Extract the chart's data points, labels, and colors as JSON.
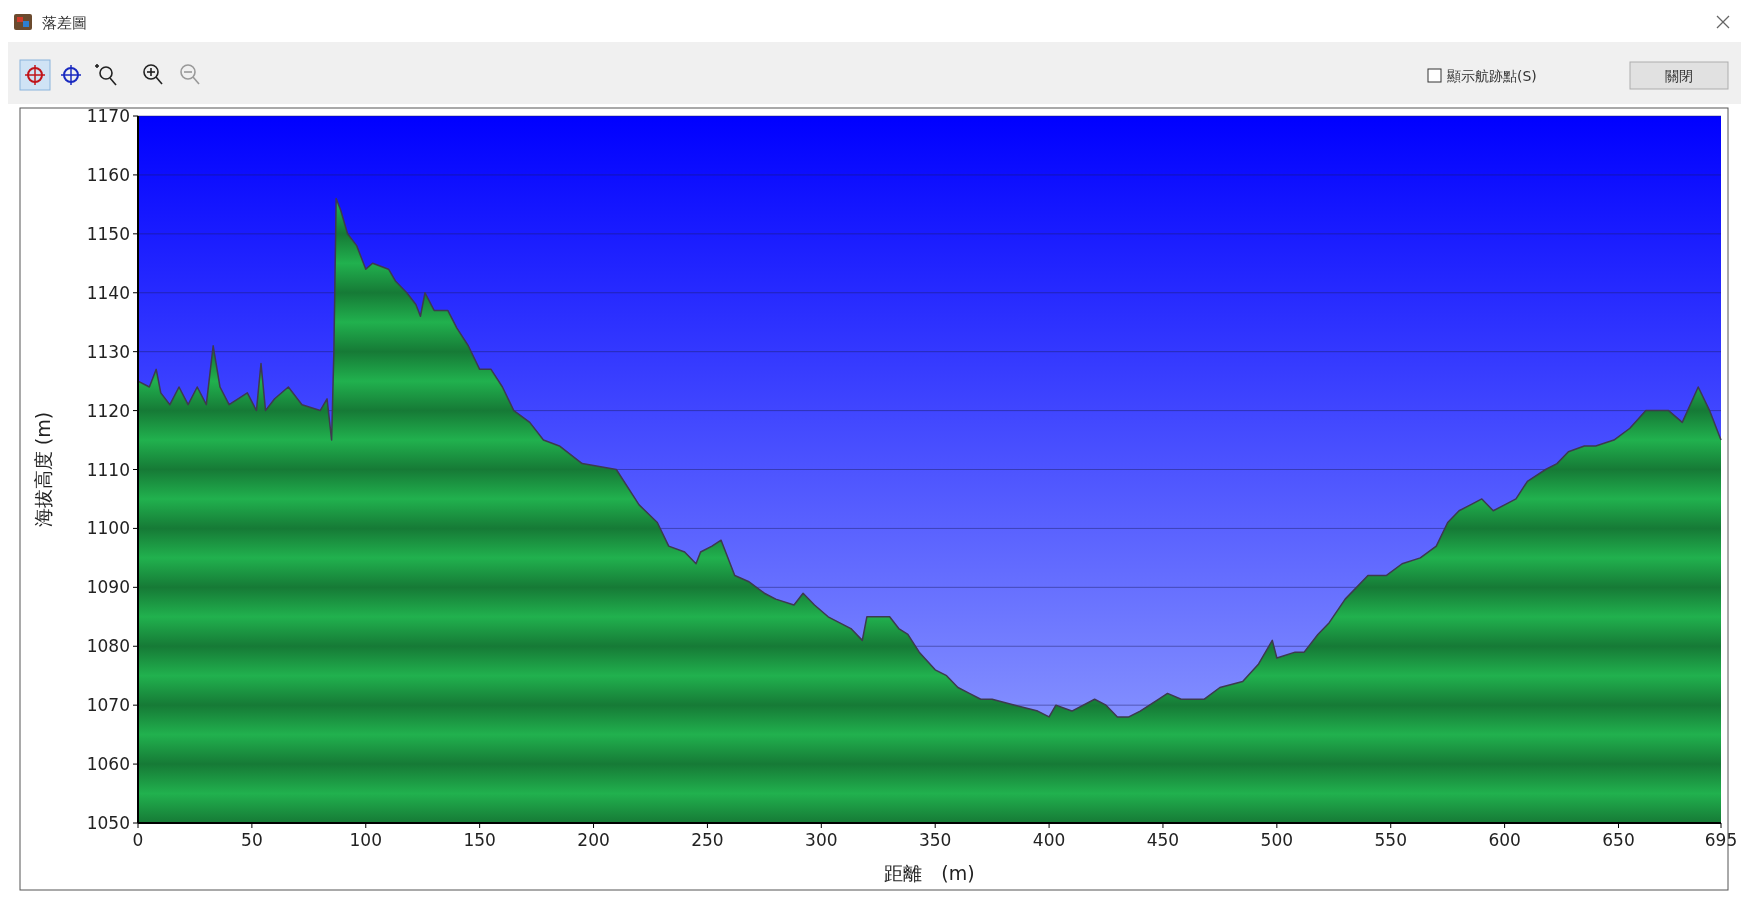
{
  "chart_data": {
    "type": "area",
    "title": "落差圖",
    "xlabel": "距離　(m)",
    "ylabel": "海拔高度 (m)",
    "annotations": [
      "顯示航跡點(S)",
      "關閉"
    ],
    "x": [
      0,
      5,
      8,
      10,
      14,
      18,
      22,
      26,
      30,
      33,
      36,
      40,
      48,
      52,
      54,
      56,
      60,
      66,
      72,
      80,
      83,
      85,
      86,
      87,
      89,
      92,
      96,
      100,
      103,
      110,
      113,
      118,
      122,
      124,
      126,
      130,
      136,
      140,
      145,
      150,
      155,
      160,
      165,
      172,
      178,
      185,
      195,
      210,
      220,
      228,
      233,
      240,
      245,
      247,
      252,
      256,
      262,
      268,
      275,
      280,
      288,
      292,
      297,
      303,
      313,
      318,
      320,
      325,
      330,
      334,
      338,
      343,
      350,
      355,
      360,
      365,
      370,
      375,
      385,
      395,
      400,
      403,
      410,
      420,
      425,
      430,
      435,
      440,
      448,
      452,
      458,
      468,
      475,
      485,
      492,
      498,
      500,
      508,
      512,
      518,
      523,
      530,
      540,
      548,
      555,
      563,
      570,
      575,
      580,
      585,
      590,
      595,
      600,
      605,
      610,
      618,
      623,
      628,
      635,
      640,
      648,
      655,
      662,
      672,
      678,
      685,
      690,
      694,
      695
    ],
    "series": [
      {
        "color": "#1fa84a",
        "values": [
          1125,
          1124,
          1127,
          1123,
          1121,
          1124,
          1121,
          1124,
          1121,
          1131,
          1124,
          1121,
          1123,
          1120,
          1128,
          1120,
          1122,
          1124,
          1121,
          1120,
          1122,
          1115,
          1130,
          1156,
          1154,
          1150,
          1148,
          1144,
          1145,
          1144,
          1142,
          1140,
          1138,
          1136,
          1140,
          1137,
          1137,
          1134,
          1131,
          1127,
          1127,
          1124,
          1120,
          1118,
          1115,
          1114,
          1111,
          1110,
          1104,
          1101,
          1097,
          1096,
          1094,
          1096,
          1097,
          1098,
          1092,
          1091,
          1089,
          1088,
          1087,
          1089,
          1087,
          1085,
          1083,
          1081,
          1085,
          1085,
          1085,
          1083,
          1082,
          1079,
          1076,
          1075,
          1073,
          1072,
          1071,
          1071,
          1070,
          1069,
          1068,
          1070,
          1069,
          1071,
          1070,
          1068,
          1068,
          1069,
          1071,
          1072,
          1071,
          1071,
          1073,
          1074,
          1077,
          1081,
          1078,
          1079,
          1079,
          1082,
          1084,
          1088,
          1092,
          1092,
          1094,
          1095,
          1097,
          1101,
          1103,
          1104,
          1105,
          1103,
          1104,
          1105,
          1108,
          1110,
          1111,
          1113,
          1114,
          1114,
          1115,
          1117,
          1120,
          1120,
          1118,
          1124,
          1120,
          1116,
          1115
        ]
      }
    ],
    "xlim": [
      0,
      695
    ],
    "xticks": [
      0,
      50,
      100,
      150,
      200,
      250,
      300,
      350,
      400,
      450,
      500,
      550,
      600,
      650,
      695
    ],
    "ylim": [
      1050,
      1170
    ],
    "yticks": [
      1050,
      1060,
      1070,
      1080,
      1090,
      1100,
      1110,
      1120,
      1130,
      1140,
      1150,
      1160,
      1170
    ],
    "grid": "y"
  }
}
